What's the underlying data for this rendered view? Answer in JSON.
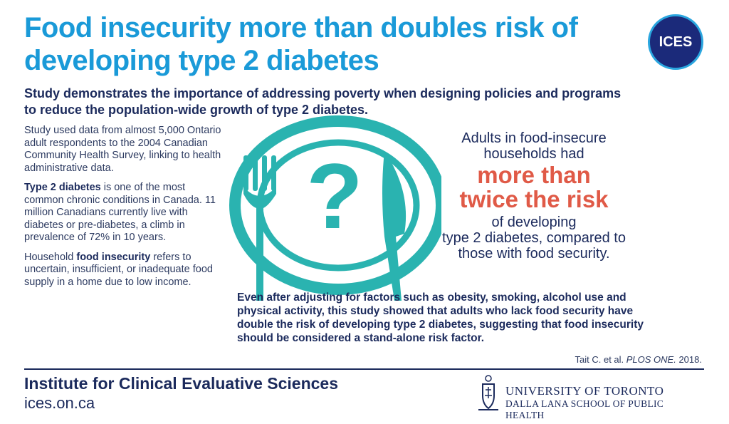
{
  "header": {
    "title_line1": "Food insecurity more than doubles risk of",
    "title_line2": "developing type 2 diabetes",
    "logo_text": "ICES"
  },
  "subtitle": {
    "line1": "Study demonstrates the importance of addressing poverty when designing policies and programs",
    "line2": "to reduce the population-wide growth of type 2 diabetes."
  },
  "left_column": {
    "p1": "Study used data from almost 5,000 Ontario adult respondents to the 2004 Canadian Community Health Survey, linking to health administrative data.",
    "p2_bold": "Type 2 diabetes",
    "p2_rest": " is one of the most common chronic conditions in Canada. 11 million Canadians currently live with diabetes or pre-diabetes, a climb in prevalence of 72% in 10 years.",
    "p3_start": "Household ",
    "p3_bold": "food insecurity",
    "p3_rest": " refers to uncertain, insufficient, or inadequate food supply in a home due to low income."
  },
  "illustration": {
    "icon": "plate-fork-knife-question-icon",
    "color": "#2ab3b0"
  },
  "stat": {
    "line1": "Adults in food-insecure",
    "line2": "households had",
    "highlight1": "more than",
    "highlight2": "twice the risk",
    "line3": "of developing",
    "line4": "type 2 diabetes, compared to",
    "line5": "those with food security.",
    "highlight_color": "#e05a47"
  },
  "finding": {
    "line1": "Even after adjusting for factors such as obesity, smoking, alcohol use and",
    "line2": "physical activity, this study showed that adults who lack food security have",
    "line3": "double the risk of developing type 2 diabetes, suggesting that food insecurity",
    "line4": "should be considered a stand-alone risk factor."
  },
  "citation": {
    "authors": "Tait C. et al. ",
    "journal": "PLOS ONE.",
    "year": " 2018."
  },
  "footer": {
    "institute": "Institute for Clinical Evaluative Sciences",
    "url": "ices.on.ca",
    "uoft_line1": "UNIVERSITY OF TORONTO",
    "uoft_line2": "DALLA LANA SCHOOL OF PUBLIC HEALTH"
  },
  "colors": {
    "title_blue": "#1a9ad8",
    "navy": "#1b2a5c",
    "teal": "#2ab3b0",
    "coral": "#e05a47"
  }
}
